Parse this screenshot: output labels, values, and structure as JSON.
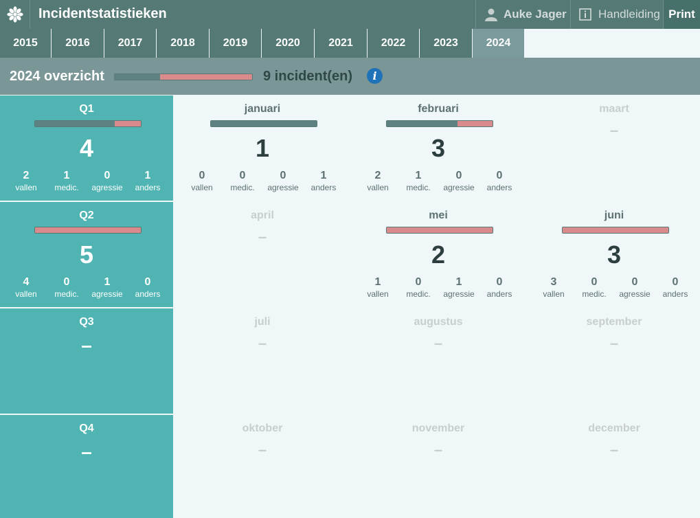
{
  "app": {
    "title": "Incidentstatistieken",
    "user": "Auke Jager",
    "manual_label": "Handleiding",
    "print_label": "Print"
  },
  "years": [
    "2015",
    "2016",
    "2017",
    "2018",
    "2019",
    "2020",
    "2021",
    "2022",
    "2023",
    "2024"
  ],
  "active_year": "2024",
  "overview": {
    "title": "2024 overzicht",
    "count_label": "9 incident(en)",
    "bar_dark_fraction": 0.33
  },
  "stat_labels": [
    "vallen",
    "medic.",
    "agressie",
    "anders"
  ],
  "dash": "–",
  "rows": [
    {
      "quarter": {
        "name": "Q1",
        "total": "4",
        "stats": [
          "2",
          "1",
          "0",
          "1"
        ],
        "bar_dark_fraction": 0.75
      },
      "months": [
        {
          "name": "januari",
          "total": "1",
          "stats": [
            "0",
            "0",
            "0",
            "1"
          ],
          "bar_dark_fraction": 1.0
        },
        {
          "name": "februari",
          "total": "3",
          "stats": [
            "2",
            "1",
            "0",
            "0"
          ],
          "bar_dark_fraction": 0.67
        },
        {
          "name": "maart"
        }
      ]
    },
    {
      "quarter": {
        "name": "Q2",
        "total": "5",
        "stats": [
          "4",
          "0",
          "1",
          "0"
        ],
        "bar_dark_fraction": 0
      },
      "months": [
        {
          "name": "april"
        },
        {
          "name": "mei",
          "total": "2",
          "stats": [
            "1",
            "0",
            "1",
            "0"
          ],
          "bar_dark_fraction": 0
        },
        {
          "name": "juni",
          "total": "3",
          "stats": [
            "3",
            "0",
            "0",
            "0"
          ],
          "bar_dark_fraction": 0
        }
      ]
    },
    {
      "quarter": {
        "name": "Q3"
      },
      "months": [
        {
          "name": "juli"
        },
        {
          "name": "augustus"
        },
        {
          "name": "september"
        }
      ]
    },
    {
      "quarter": {
        "name": "Q4"
      },
      "months": [
        {
          "name": "oktober"
        },
        {
          "name": "november"
        },
        {
          "name": "december"
        }
      ]
    }
  ],
  "colors": {
    "header": "#557a76",
    "quarter_bg": "#50b4b2",
    "bar_dark": "#5e8282",
    "bar_light": "#d98a8c",
    "info": "#1f72b8"
  }
}
